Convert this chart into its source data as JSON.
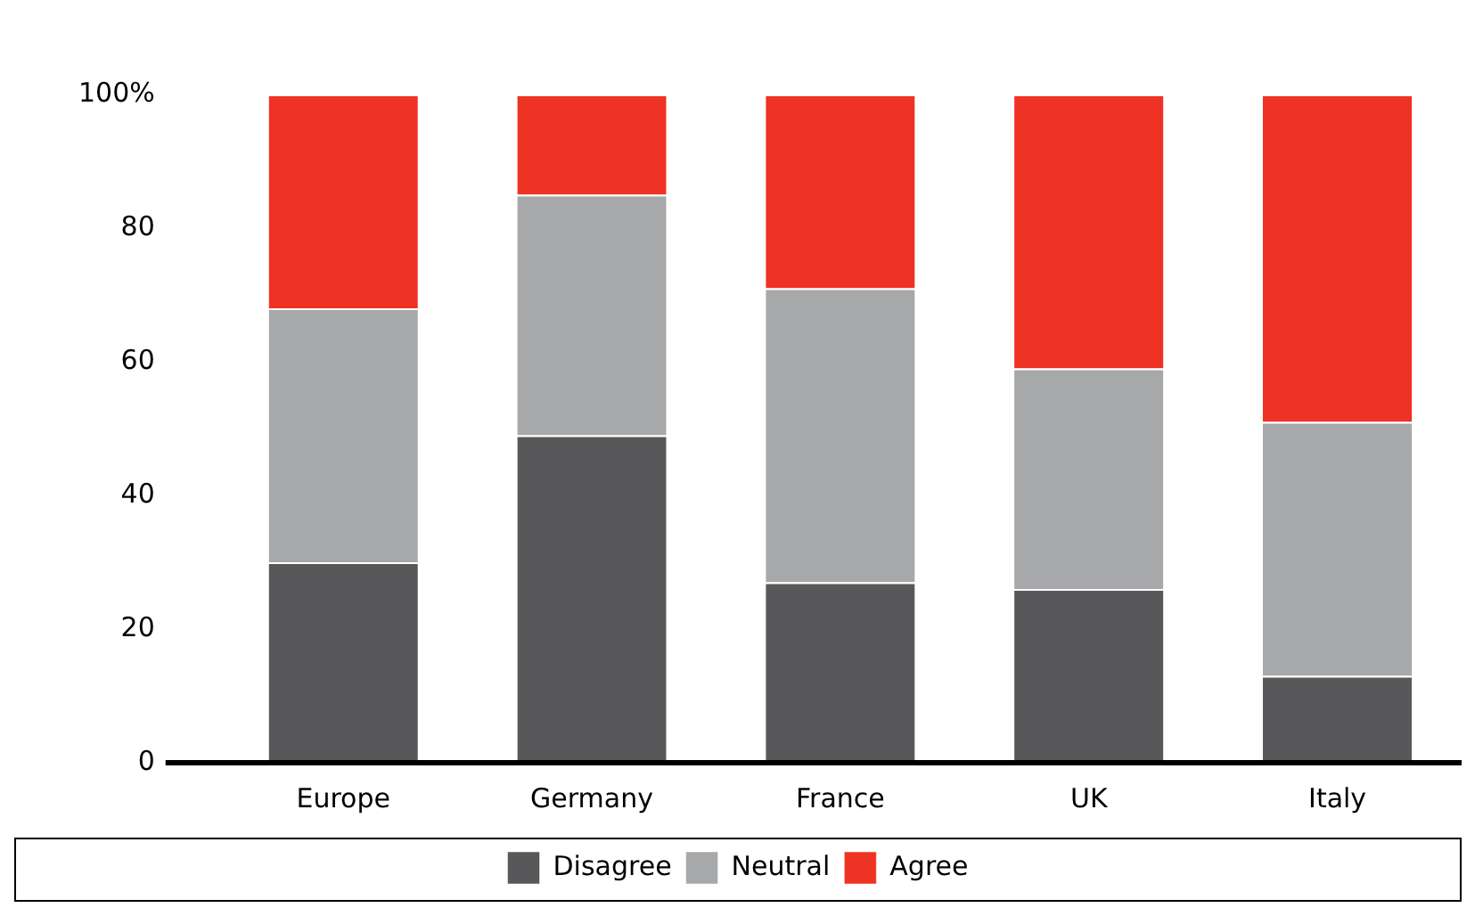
{
  "chart_data": {
    "type": "bar",
    "stacked": true,
    "categories": [
      "Europe",
      "Germany",
      "France",
      "UK",
      "Italy"
    ],
    "series": [
      {
        "name": "Disagree",
        "color": "#58585a",
        "values": [
          30,
          49,
          27,
          26,
          13
        ]
      },
      {
        "name": "Neutral",
        "color": "#a7a8aa",
        "values": [
          38,
          36,
          44,
          33,
          38
        ]
      },
      {
        "name": "Agree",
        "color": "#ee3224",
        "values": [
          32,
          15,
          29,
          41,
          49
        ]
      }
    ],
    "ylim": [
      0,
      100
    ],
    "yticks": [
      0,
      20,
      40,
      60,
      80,
      {
        "value": 100,
        "label": "100%"
      }
    ],
    "grid": false,
    "legend": "bottom"
  }
}
